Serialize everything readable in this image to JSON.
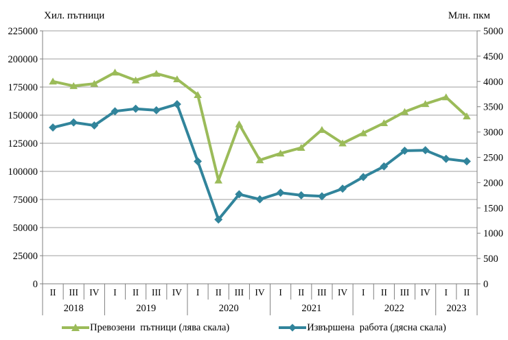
{
  "colors": {
    "passengers": "#9BBB59",
    "work": "#31849B",
    "gridline": "#9C9C9C",
    "axis": "#7F7F7F",
    "text": "#000000"
  },
  "legend": {
    "items": [
      {
        "label": "Превозени  пътници (лява скала)",
        "series": "passengers"
      },
      {
        "label": "Извършена  работа (дясна скала)",
        "series": "work"
      }
    ]
  },
  "chart_data": {
    "type": "line",
    "title": "",
    "left_axis": {
      "title": "Хил. пътници",
      "min": 0,
      "max": 225000,
      "step": 25000,
      "ticks": [
        0,
        25000,
        50000,
        75000,
        100000,
        125000,
        150000,
        175000,
        200000,
        225000
      ]
    },
    "right_axis": {
      "title": "Млн. пкм",
      "min": 0,
      "max": 5000,
      "step": 500,
      "ticks": [
        0,
        500,
        1000,
        1500,
        2000,
        2500,
        3000,
        3500,
        4000,
        4500,
        5000
      ]
    },
    "x_groups": [
      {
        "year": "2018",
        "quarters": [
          "II",
          "III",
          "IV"
        ]
      },
      {
        "year": "2019",
        "quarters": [
          "I",
          "II",
          "III",
          "IV"
        ]
      },
      {
        "year": "2020",
        "quarters": [
          "I",
          "II",
          "III",
          "IV"
        ]
      },
      {
        "year": "2021",
        "quarters": [
          "I",
          "II",
          "III",
          "IV"
        ]
      },
      {
        "year": "2022",
        "quarters": [
          "I",
          "II",
          "III",
          "IV"
        ]
      },
      {
        "year": "2023",
        "quarters": [
          "I",
          "II"
        ]
      }
    ],
    "grid": true,
    "legend_position": "bottom",
    "series": [
      {
        "name": "Превозени пътници (лява скала)",
        "axis": "left",
        "marker": "triangle",
        "color_key": "passengers",
        "values": [
          180000,
          176000,
          178000,
          188000,
          181000,
          187000,
          182000,
          168000,
          92000,
          142000,
          110000,
          116000,
          121000,
          137000,
          125000,
          134000,
          143000,
          153000,
          160000,
          166000,
          149000
        ]
      },
      {
        "name": "Извършена работа (дясна скала)",
        "axis": "right",
        "marker": "diamond",
        "color_key": "work",
        "values": [
          3090,
          3190,
          3130,
          3410,
          3460,
          3430,
          3550,
          2420,
          1270,
          1770,
          1670,
          1800,
          1750,
          1730,
          1880,
          2110,
          2320,
          2630,
          2640,
          2470,
          2420
        ]
      }
    ]
  }
}
